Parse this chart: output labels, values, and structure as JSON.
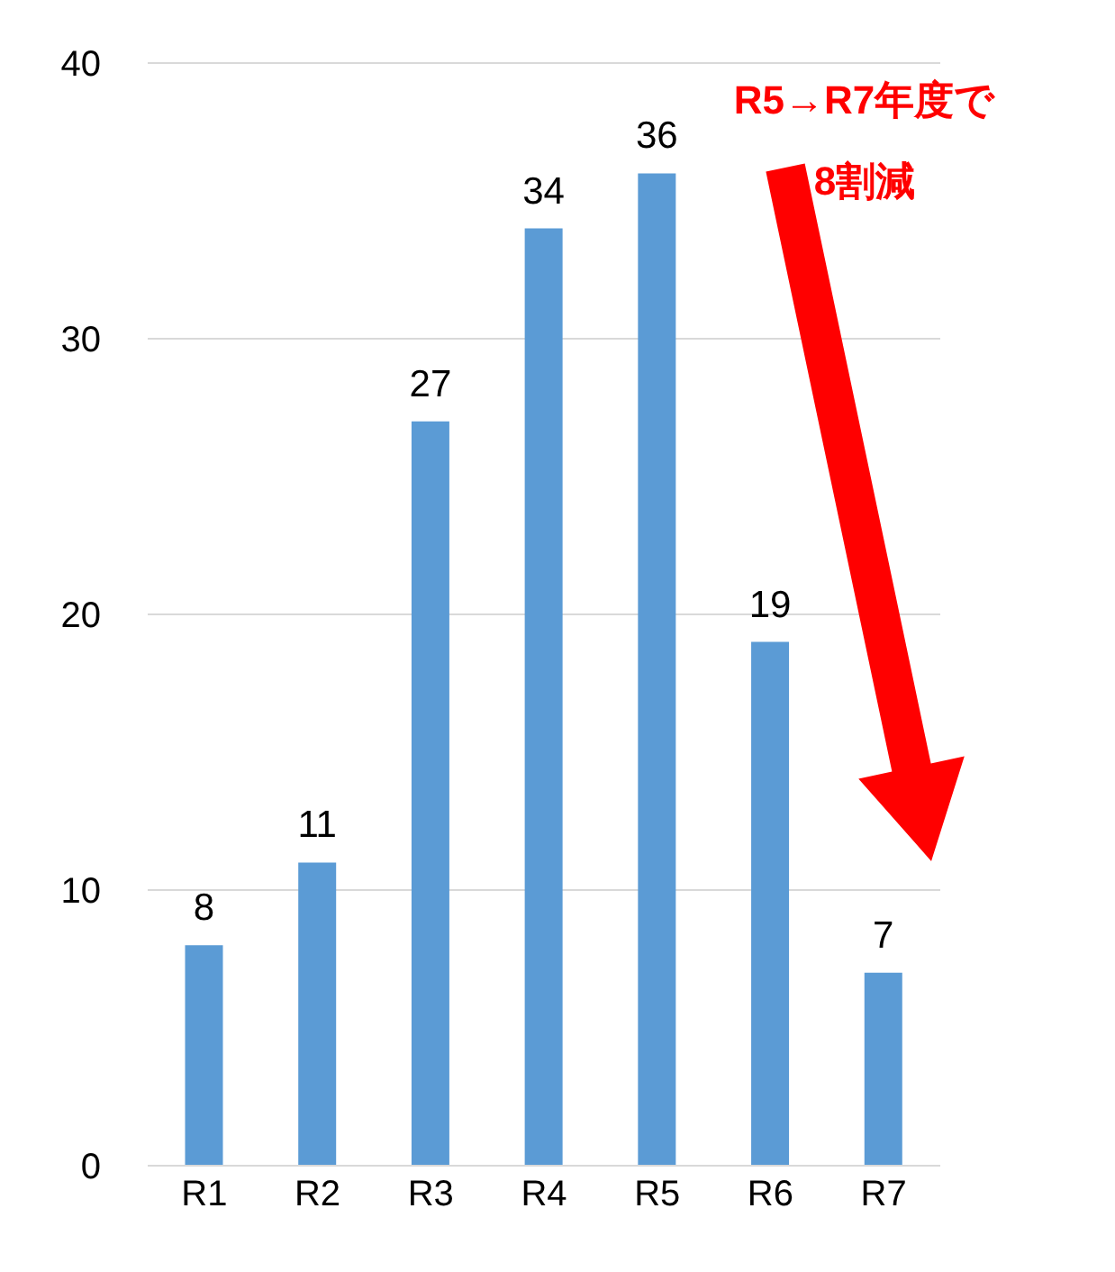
{
  "chart_data": {
    "type": "bar",
    "categories": [
      "R1",
      "R2",
      "R3",
      "R4",
      "R5",
      "R6",
      "R7"
    ],
    "values": [
      8,
      11,
      27,
      34,
      36,
      19,
      7
    ],
    "color": "#5b9bd5",
    "ylim": [
      0,
      40
    ],
    "yticks": [
      0,
      10,
      20,
      30,
      40
    ],
    "grid": "y",
    "data_labels": true,
    "annotations": [
      "R5→R7年度で\n8割減"
    ]
  }
}
